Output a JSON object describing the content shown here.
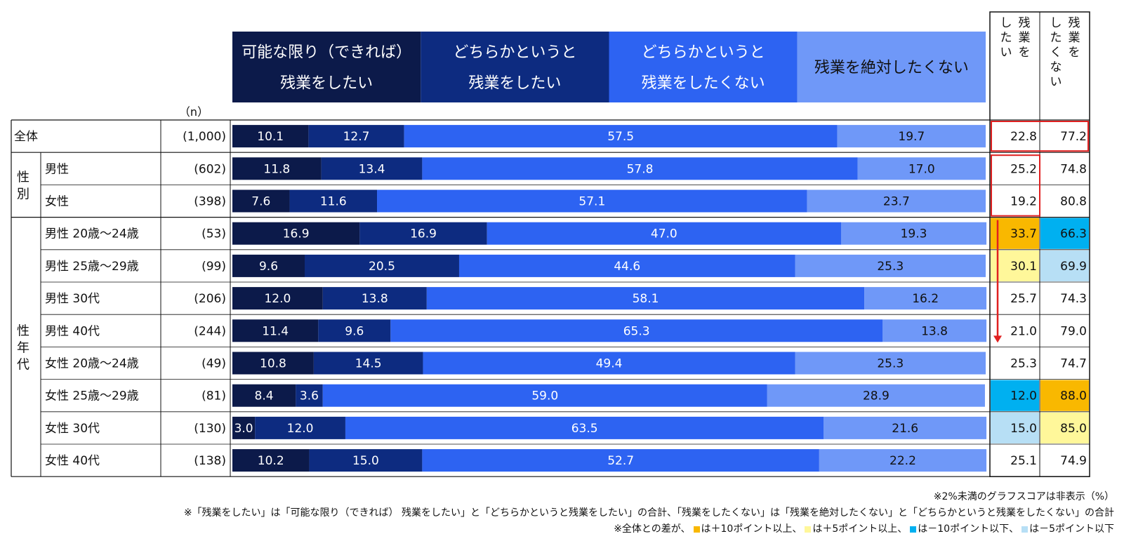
{
  "chart_data": {
    "type": "bar",
    "orientation": "horizontal",
    "stacked": true,
    "xlim": [
      0,
      100
    ],
    "n_label": "（n）",
    "legend": [
      {
        "name": "可能な限り（できれば）残業をしたい",
        "lines": [
          "可能な限り（できれば）",
          "残業をしたい"
        ],
        "color": "#0c1a4a",
        "text_color": "#ffffff"
      },
      {
        "name": "どちらかというと残業をしたい",
        "lines": [
          "どちらかというと",
          "残業をしたい"
        ],
        "color": "#0d2b80",
        "text_color": "#ffffff"
      },
      {
        "name": "どちらかというと残業をしたくない",
        "lines": [
          "どちらかというと",
          "残業をしたくない"
        ],
        "color": "#2d63f2",
        "text_color": "#ffffff"
      },
      {
        "name": "残業を絶対したくない",
        "lines": [
          "残業を絶対したくない"
        ],
        "color": "#6f98f8",
        "text_color": "#111111"
      }
    ],
    "summary_headers": [
      {
        "name": "残業をしたい",
        "columns": [
          "残業を",
          "したい"
        ]
      },
      {
        "name": "残業をしたくない",
        "columns": [
          "残業を",
          "したくない"
        ]
      }
    ],
    "groups": [
      {
        "label": "",
        "rows": [
          0
        ]
      },
      {
        "label": "性別",
        "rows": [
          1,
          2
        ]
      },
      {
        "label": "性年代",
        "rows": [
          3,
          4,
          5,
          6,
          7,
          8,
          9,
          10
        ]
      }
    ],
    "rows": [
      {
        "label": "全体",
        "n": "(1,000)",
        "values": [
          10.1,
          12.7,
          57.5,
          19.7
        ],
        "want": "22.8",
        "not_want": "77.2",
        "want_hl": "",
        "not_want_hl": ""
      },
      {
        "label": "男性",
        "n": "(602)",
        "values": [
          11.8,
          13.4,
          57.8,
          17.0
        ],
        "want": "25.2",
        "not_want": "74.8",
        "want_hl": "",
        "not_want_hl": ""
      },
      {
        "label": "女性",
        "n": "(398)",
        "values": [
          7.6,
          11.6,
          57.1,
          23.7
        ],
        "want": "19.2",
        "not_want": "80.8",
        "want_hl": "",
        "not_want_hl": ""
      },
      {
        "label": "男性 20歳～24歳",
        "n": "(53)",
        "values": [
          16.9,
          16.9,
          47.0,
          19.3
        ],
        "want": "33.7",
        "not_want": "66.3",
        "want_hl": "plus10",
        "not_want_hl": "minus10"
      },
      {
        "label": "男性 25歳～29歳",
        "n": "(99)",
        "values": [
          9.6,
          20.5,
          44.6,
          25.3
        ],
        "want": "30.1",
        "not_want": "69.9",
        "want_hl": "plus5",
        "not_want_hl": "minus5"
      },
      {
        "label": "男性 30代",
        "n": "(206)",
        "values": [
          12.0,
          13.8,
          58.1,
          16.2
        ],
        "want": "25.7",
        "not_want": "74.3",
        "want_hl": "",
        "not_want_hl": ""
      },
      {
        "label": "男性 40代",
        "n": "(244)",
        "values": [
          11.4,
          9.6,
          65.3,
          13.8
        ],
        "want": "21.0",
        "not_want": "79.0",
        "want_hl": "",
        "not_want_hl": ""
      },
      {
        "label": "女性 20歳～24歳",
        "n": "(49)",
        "values": [
          10.8,
          14.5,
          49.4,
          25.3
        ],
        "want": "25.3",
        "not_want": "74.7",
        "want_hl": "",
        "not_want_hl": ""
      },
      {
        "label": "女性 25歳～29歳",
        "n": "(81)",
        "values": [
          8.4,
          3.6,
          59.0,
          28.9
        ],
        "want": "12.0",
        "not_want": "88.0",
        "want_hl": "minus10",
        "not_want_hl": "plus10"
      },
      {
        "label": "女性 30代",
        "n": "(130)",
        "values": [
          3.0,
          12.0,
          63.5,
          21.6
        ],
        "want": "15.0",
        "not_want": "85.0",
        "want_hl": "minus5",
        "not_want_hl": "plus5"
      },
      {
        "label": "女性 40代",
        "n": "(138)",
        "values": [
          10.2,
          15.0,
          52.7,
          22.2
        ],
        "want": "25.1",
        "not_want": "74.9",
        "want_hl": "",
        "not_want_hl": ""
      }
    ],
    "highlight_colors": {
      "plus10": "#f9b800",
      "plus5": "#fff79a",
      "minus10": "#00b0f0",
      "minus5": "#b7dff5"
    },
    "annotation_color": "#e02020",
    "notes": {
      "hidden": "※2%未満のグラフスコアは非表示（%）",
      "definition": "※「残業をしたい」は「可能な限り（できれば） 残業をしたい」と「どちらかというと残業をしたい」の合計、「残業をしたくない」は「残業を絶対したくない」と「どちらかというと残業をしたくない」の合計",
      "legend_prefix": "※全体との差が、",
      "legend_items": [
        {
          "key": "plus10",
          "text": "は＋10ポイント以上、"
        },
        {
          "key": "plus5",
          "text": "は＋5ポイント以上、"
        },
        {
          "key": "minus10",
          "text": "は－10ポイント以下、"
        },
        {
          "key": "minus5",
          "text": "は－5ポイント以下"
        }
      ]
    }
  }
}
